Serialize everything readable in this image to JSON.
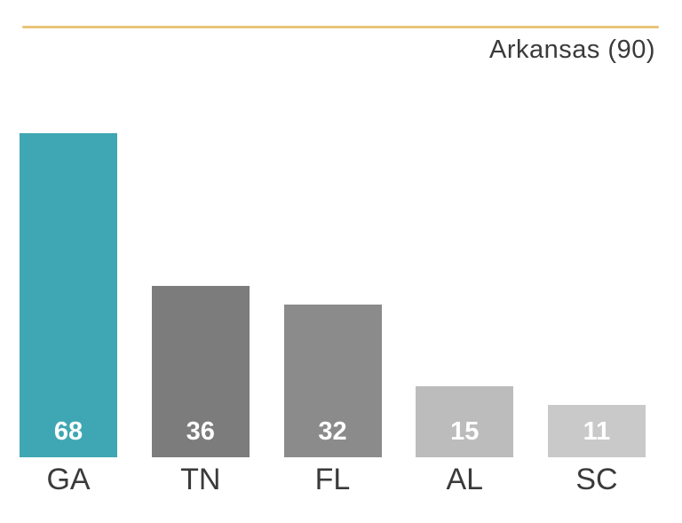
{
  "chart_data": {
    "type": "bar",
    "title": "",
    "xlabel": "",
    "ylabel": "",
    "categories": [
      "GA",
      "TN",
      "FL",
      "AL",
      "SC"
    ],
    "values": [
      68,
      36,
      32,
      15,
      11
    ],
    "ylim": [
      0,
      90
    ],
    "grid": false,
    "legend_position": "none",
    "reference_line": {
      "label": "Arkansas (90)",
      "value": 90,
      "position": "top"
    },
    "bar_colors": [
      "#3fa7b3",
      "#7c7c7c",
      "#8b8b8b",
      "#bcbcbc",
      "#c9c9c9"
    ],
    "accent_line_color": "#e9c579",
    "value_label_color": "#ffffff",
    "axis_label_color": "#3a3a3a"
  }
}
